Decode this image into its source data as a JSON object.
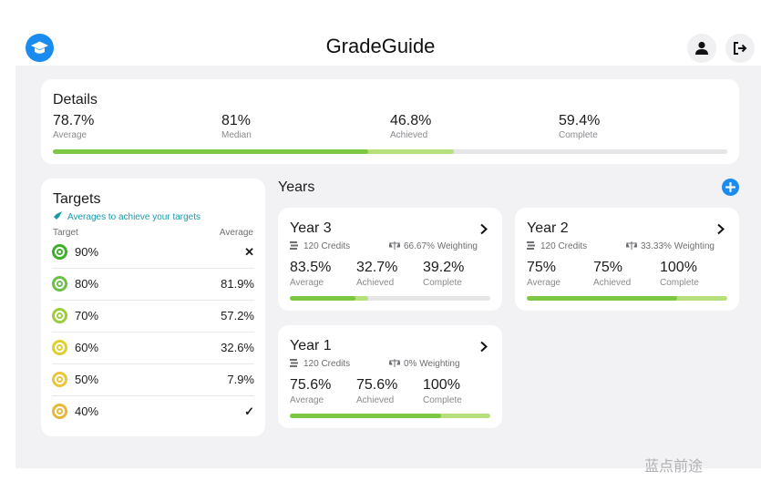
{
  "app": {
    "title": "GradeGuide"
  },
  "details": {
    "title": "Details",
    "stats": [
      {
        "value": "78.7%",
        "label": "Average"
      },
      {
        "value": "81%",
        "label": "Median"
      },
      {
        "value": "46.8%",
        "label": "Achieved"
      },
      {
        "value": "59.4%",
        "label": "Complete"
      }
    ],
    "progress": {
      "average": 0.468,
      "achieved": 0.594
    }
  },
  "targets": {
    "title": "Targets",
    "subtitle": "Averages to achieve your targets",
    "col_target": "Target",
    "col_average": "Average",
    "rows": [
      {
        "target": "90%",
        "average": "✕",
        "color": "#3fae2a"
      },
      {
        "target": "80%",
        "average": "81.9%",
        "color": "#6cc04a"
      },
      {
        "target": "70%",
        "average": "57.2%",
        "color": "#9ccd3b"
      },
      {
        "target": "60%",
        "average": "32.6%",
        "color": "#e0cf2e"
      },
      {
        "target": "50%",
        "average": "7.9%",
        "color": "#ecc53a"
      },
      {
        "target": "40%",
        "average": "✓",
        "color": "#e8b73a"
      }
    ]
  },
  "years": {
    "title": "Years",
    "cards": [
      {
        "name": "Year 3",
        "credits": "120 Credits",
        "weighting": "66.67% Weighting",
        "stats": [
          {
            "value": "83.5%",
            "label": "Average"
          },
          {
            "value": "32.7%",
            "label": "Achieved"
          },
          {
            "value": "39.2%",
            "label": "Complete"
          }
        ],
        "progress": {
          "average": 0.327,
          "achieved": 0.392
        }
      },
      {
        "name": "Year 2",
        "credits": "120 Credits",
        "weighting": "33.33% Weighting",
        "stats": [
          {
            "value": "75%",
            "label": "Average"
          },
          {
            "value": "75%",
            "label": "Achieved"
          },
          {
            "value": "100%",
            "label": "Complete"
          }
        ],
        "progress": {
          "average": 0.75,
          "achieved": 1.0
        }
      },
      {
        "name": "Year 1",
        "credits": "120 Credits",
        "weighting": "0% Weighting",
        "stats": [
          {
            "value": "75.6%",
            "label": "Average"
          },
          {
            "value": "75.6%",
            "label": "Achieved"
          },
          {
            "value": "100%",
            "label": "Complete"
          }
        ],
        "progress": {
          "average": 0.756,
          "achieved": 1.0
        }
      }
    ]
  },
  "icons": {
    "logo": "graduation-cap-icon",
    "profile": "user-icon",
    "logout": "logout-icon",
    "add": "plus-icon",
    "subtitle": "rocket-icon",
    "credits": "coins-icon",
    "weighting": "scale-icon",
    "card_open": "chevron-right-icon"
  },
  "colors": {
    "accent": "#1a8cf0",
    "achieved": "#b5e07c",
    "average": "#7cc843",
    "track": "#e6e6e8",
    "teal": "#1a9aa8"
  },
  "watermark": "蓝点前途"
}
